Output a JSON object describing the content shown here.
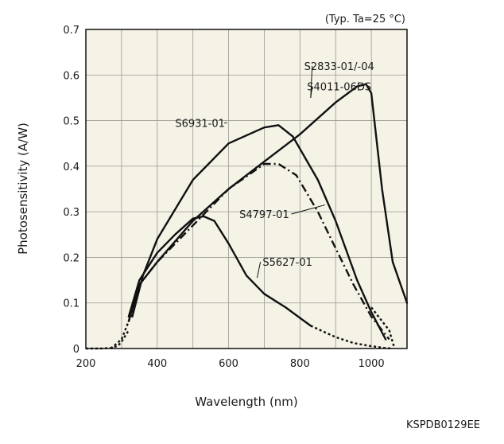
{
  "chart_data": {
    "type": "line",
    "condition_note": "(Typ. Ta=25 °C)",
    "xlabel": "Wavelength (nm)",
    "ylabel": "Photosensitivity (A/W)",
    "figure_code": "KSPDB0129EE",
    "xlim": [
      200,
      1100
    ],
    "ylim": [
      0,
      0.7
    ],
    "x_ticks": [
      200,
      400,
      600,
      800,
      1000
    ],
    "y_ticks": [
      0,
      0.1,
      0.2,
      0.3,
      0.4,
      0.5,
      0.6,
      0.7
    ],
    "grid": true,
    "plot_background": "#f5f2e6",
    "line_color": "#111111",
    "series": [
      {
        "name": "S2833-01/-04",
        "style": "solid",
        "x": [
          320,
          350,
          400,
          500,
          600,
          700,
          800,
          900,
          960,
          985,
          1000,
          1030,
          1060,
          1100
        ],
        "y": [
          0.06,
          0.14,
          0.19,
          0.28,
          0.35,
          0.41,
          0.47,
          0.54,
          0.575,
          0.58,
          0.56,
          0.35,
          0.19,
          0.1
        ]
      },
      {
        "name": "S6931-01",
        "style": "solid",
        "x": [
          330,
          360,
          400,
          500,
          600,
          700,
          740,
          780,
          850,
          900,
          960,
          1000,
          1040
        ],
        "y": [
          0.07,
          0.16,
          0.24,
          0.37,
          0.45,
          0.485,
          0.49,
          0.465,
          0.37,
          0.28,
          0.15,
          0.08,
          0.02
        ]
      },
      {
        "name": "S4797-01",
        "style": "dashdot",
        "x": [
          320,
          350,
          400,
          500,
          600,
          700,
          740,
          790,
          850,
          900,
          950,
          1000,
          1050
        ],
        "y": [
          0.07,
          0.14,
          0.19,
          0.27,
          0.35,
          0.405,
          0.405,
          0.38,
          0.3,
          0.22,
          0.14,
          0.07,
          0.02
        ]
      },
      {
        "name": "S4797-01 (dotted extension)",
        "style": "dotted",
        "x": [
          270,
          300,
          330,
          350
        ],
        "y": [
          0.0,
          0.02,
          0.08,
          0.13
        ]
      },
      {
        "name": "S5627-01",
        "style": "solid",
        "x": [
          320,
          350,
          400,
          450,
          500,
          530,
          560,
          600,
          650,
          700,
          760,
          830
        ],
        "y": [
          0.07,
          0.15,
          0.21,
          0.25,
          0.285,
          0.29,
          0.28,
          0.23,
          0.16,
          0.12,
          0.09,
          0.05
        ]
      },
      {
        "name": "S5627-01 (dotted extension)",
        "style": "dotted",
        "x": [
          830,
          900,
          950,
          1000,
          1040,
          1060
        ],
        "y": [
          0.05,
          0.025,
          0.012,
          0.005,
          0.001,
          0.0
        ]
      },
      {
        "name": "low-wavelength dotted tail",
        "style": "dotted",
        "x": [
          200,
          240,
          270,
          290,
          300,
          320
        ],
        "y": [
          0.0,
          0.0,
          0.001,
          0.006,
          0.015,
          0.04
        ]
      },
      {
        "name": "S4797-01 IR dotted tail",
        "style": "dotted",
        "x": [
          1000,
          1030,
          1050,
          1065
        ],
        "y": [
          0.09,
          0.06,
          0.04,
          0.0
        ]
      }
    ],
    "annotations": [
      {
        "text": "S2833-01/-04",
        "x": 910,
        "y": 0.62,
        "pointer": [
          830,
          0.55
        ]
      },
      {
        "text": "S4011-06DS",
        "x": 910,
        "y": 0.575,
        "pointer": [
          830,
          0.55
        ]
      },
      {
        "text": "S6931-01",
        "x": 520,
        "y": 0.495,
        "pointer": [
          588,
          0.495
        ]
      },
      {
        "text": "S4797-01",
        "x": 700,
        "y": 0.295,
        "pointer": [
          870,
          0.315
        ]
      },
      {
        "text": "S5627-01",
        "x": 765,
        "y": 0.19,
        "pointer": [
          680,
          0.155
        ]
      }
    ]
  }
}
